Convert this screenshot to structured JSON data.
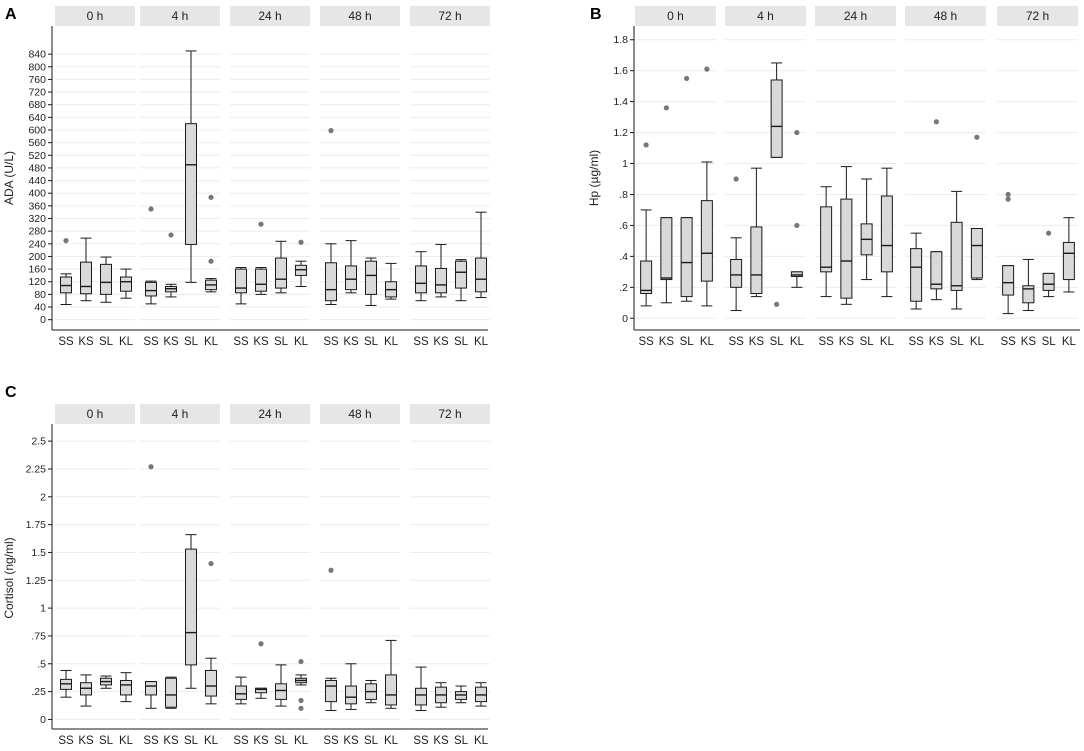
{
  "chart_data": [
    {
      "type": "boxplot",
      "panel_label": "A",
      "ylabel": "ADA (U/L)",
      "ylim": [
        -20,
        910
      ],
      "yticks": [
        0,
        40,
        80,
        120,
        160,
        200,
        240,
        280,
        320,
        360,
        400,
        440,
        480,
        520,
        560,
        600,
        640,
        680,
        720,
        760,
        800,
        840
      ],
      "ytick_labels": [
        "0",
        "40",
        "80",
        "120",
        "160",
        "200",
        "240",
        "280",
        "320",
        "360",
        "400",
        "440",
        "480",
        "520",
        "560",
        "600",
        "640",
        "680",
        "720",
        "760",
        "800",
        "840"
      ],
      "groups": [
        "SS",
        "KS",
        "SL",
        "KL"
      ],
      "facets": [
        {
          "label": "0 h",
          "boxes": [
            {
              "group": "SS",
              "min": 48,
              "q1": 85,
              "median": 108,
              "q3": 135,
              "max": 145,
              "outliers": [
                250
              ]
            },
            {
              "group": "KS",
              "min": 60,
              "q1": 82,
              "median": 105,
              "q3": 182,
              "max": 258,
              "outliers": []
            },
            {
              "group": "SL",
              "min": 55,
              "q1": 80,
              "median": 118,
              "q3": 175,
              "max": 198,
              "outliers": []
            },
            {
              "group": "KL",
              "min": 68,
              "q1": 90,
              "median": 120,
              "q3": 135,
              "max": 160,
              "outliers": []
            }
          ]
        },
        {
          "label": "4 h",
          "boxes": [
            {
              "group": "SS",
              "min": 50,
              "q1": 75,
              "median": 92,
              "q3": 118,
              "max": 122,
              "outliers": [
                350
              ]
            },
            {
              "group": "KS",
              "min": 72,
              "q1": 88,
              "median": 98,
              "q3": 105,
              "max": 112,
              "outliers": [
                268
              ]
            },
            {
              "group": "SL",
              "min": 118,
              "q1": 238,
              "median": 490,
              "q3": 620,
              "max": 850,
              "outliers": []
            },
            {
              "group": "KL",
              "min": 88,
              "q1": 95,
              "median": 110,
              "q3": 125,
              "max": 130,
              "outliers": [
                387,
                185
              ]
            }
          ]
        },
        {
          "label": "24 h",
          "boxes": [
            {
              "group": "SS",
              "min": 50,
              "q1": 85,
              "median": 100,
              "q3": 160,
              "max": 165,
              "outliers": []
            },
            {
              "group": "KS",
              "min": 80,
              "q1": 90,
              "median": 112,
              "q3": 160,
              "max": 165,
              "outliers": [
                302
              ]
            },
            {
              "group": "SL",
              "min": 85,
              "q1": 100,
              "median": 128,
              "q3": 195,
              "max": 248,
              "outliers": []
            },
            {
              "group": "KL",
              "min": 105,
              "q1": 140,
              "median": 158,
              "q3": 172,
              "max": 185,
              "outliers": [
                245
              ]
            }
          ]
        },
        {
          "label": "48 h",
          "boxes": [
            {
              "group": "SS",
              "min": 48,
              "q1": 60,
              "median": 95,
              "q3": 180,
              "max": 240,
              "outliers": [
                598
              ]
            },
            {
              "group": "KS",
              "min": 85,
              "q1": 95,
              "median": 128,
              "q3": 170,
              "max": 250,
              "outliers": []
            },
            {
              "group": "SL",
              "min": 45,
              "q1": 80,
              "median": 140,
              "q3": 185,
              "max": 195,
              "outliers": []
            },
            {
              "group": "KL",
              "min": 65,
              "q1": 72,
              "median": 95,
              "q3": 120,
              "max": 178,
              "outliers": []
            }
          ]
        },
        {
          "label": "72 h",
          "boxes": [
            {
              "group": "SS",
              "min": 60,
              "q1": 85,
              "median": 115,
              "q3": 170,
              "max": 215,
              "outliers": []
            },
            {
              "group": "KS",
              "min": 72,
              "q1": 85,
              "median": 110,
              "q3": 162,
              "max": 238,
              "outliers": []
            },
            {
              "group": "SL",
              "min": 60,
              "q1": 100,
              "median": 150,
              "q3": 185,
              "max": 190,
              "outliers": []
            },
            {
              "group": "KL",
              "min": 70,
              "q1": 88,
              "median": 128,
              "q3": 195,
              "max": 340,
              "outliers": []
            }
          ]
        }
      ]
    },
    {
      "type": "boxplot",
      "panel_label": "B",
      "ylabel": "Hp (µg/ml)",
      "ylim": [
        -0.05,
        1.85
      ],
      "yticks": [
        0,
        0.2,
        0.4,
        0.6,
        0.8,
        1.0,
        1.2,
        1.4,
        1.6,
        1.8
      ],
      "ytick_labels": [
        "0",
        ".2",
        ".4",
        ".6",
        ".8",
        "1",
        "1.2",
        "1.4",
        "1.6",
        "1.8"
      ],
      "groups": [
        "SS",
        "KS",
        "SL",
        "KL"
      ],
      "facets": [
        {
          "label": "0 h",
          "boxes": [
            {
              "group": "SS",
              "min": 0.08,
              "q1": 0.16,
              "median": 0.18,
              "q3": 0.37,
              "max": 0.7,
              "outliers": [
                1.12
              ]
            },
            {
              "group": "KS",
              "min": 0.1,
              "q1": 0.25,
              "median": 0.26,
              "q3": 0.65,
              "max": 0.65,
              "outliers": [
                1.36
              ]
            },
            {
              "group": "SL",
              "min": 0.11,
              "q1": 0.14,
              "median": 0.36,
              "q3": 0.65,
              "max": 0.65,
              "outliers": [
                1.55
              ]
            },
            {
              "group": "KL",
              "min": 0.08,
              "q1": 0.24,
              "median": 0.42,
              "q3": 0.76,
              "max": 1.01,
              "outliers": [
                1.61
              ]
            }
          ]
        },
        {
          "label": "4 h",
          "boxes": [
            {
              "group": "SS",
              "min": 0.05,
              "q1": 0.2,
              "median": 0.28,
              "q3": 0.38,
              "max": 0.52,
              "outliers": [
                0.9
              ]
            },
            {
              "group": "KS",
              "min": 0.14,
              "q1": 0.16,
              "median": 0.28,
              "q3": 0.59,
              "max": 0.97,
              "outliers": []
            },
            {
              "group": "SL",
              "min": 1.04,
              "q1": 1.04,
              "median": 1.24,
              "q3": 1.54,
              "max": 1.65,
              "outliers": [
                0.09
              ]
            },
            {
              "group": "KL",
              "min": 0.2,
              "q1": 0.27,
              "median": 0.28,
              "q3": 0.3,
              "max": 0.3,
              "outliers": [
                1.2,
                0.6
              ]
            }
          ]
        },
        {
          "label": "24 h",
          "boxes": [
            {
              "group": "SS",
              "min": 0.14,
              "q1": 0.3,
              "median": 0.33,
              "q3": 0.72,
              "max": 0.85,
              "outliers": []
            },
            {
              "group": "KS",
              "min": 0.09,
              "q1": 0.13,
              "median": 0.37,
              "q3": 0.77,
              "max": 0.98,
              "outliers": []
            },
            {
              "group": "SL",
              "min": 0.25,
              "q1": 0.41,
              "median": 0.51,
              "q3": 0.61,
              "max": 0.9,
              "outliers": []
            },
            {
              "group": "KL",
              "min": 0.14,
              "q1": 0.3,
              "median": 0.47,
              "q3": 0.79,
              "max": 0.97,
              "outliers": []
            }
          ]
        },
        {
          "label": "48 h",
          "boxes": [
            {
              "group": "SS",
              "min": 0.06,
              "q1": 0.11,
              "median": 0.33,
              "q3": 0.45,
              "max": 0.55,
              "outliers": []
            },
            {
              "group": "KS",
              "min": 0.12,
              "q1": 0.19,
              "median": 0.22,
              "q3": 0.43,
              "max": 0.43,
              "outliers": [
                1.27
              ]
            },
            {
              "group": "SL",
              "min": 0.06,
              "q1": 0.18,
              "median": 0.21,
              "q3": 0.62,
              "max": 0.82,
              "outliers": []
            },
            {
              "group": "KL",
              "min": 0.25,
              "q1": 0.26,
              "median": 0.47,
              "q3": 0.58,
              "max": 0.58,
              "outliers": [
                1.17
              ]
            }
          ]
        },
        {
          "label": "72 h",
          "boxes": [
            {
              "group": "SS",
              "min": 0.03,
              "q1": 0.15,
              "median": 0.23,
              "q3": 0.34,
              "max": 0.34,
              "outliers": [
                0.8,
                0.77
              ]
            },
            {
              "group": "KS",
              "min": 0.05,
              "q1": 0.1,
              "median": 0.19,
              "q3": 0.21,
              "max": 0.38,
              "outliers": []
            },
            {
              "group": "SL",
              "min": 0.14,
              "q1": 0.18,
              "median": 0.22,
              "q3": 0.29,
              "max": 0.29,
              "outliers": [
                0.55
              ]
            },
            {
              "group": "KL",
              "min": 0.17,
              "q1": 0.25,
              "median": 0.42,
              "q3": 0.49,
              "max": 0.65,
              "outliers": []
            }
          ]
        }
      ]
    },
    {
      "type": "boxplot",
      "panel_label": "C",
      "ylabel": "Cortisol (ng/ml)",
      "ylim": [
        -0.05,
        2.6
      ],
      "yticks": [
        0,
        0.25,
        0.5,
        0.75,
        1.0,
        1.25,
        1.5,
        1.75,
        2.0,
        2.25,
        2.5
      ],
      "ytick_labels": [
        "0",
        ".25",
        ".5",
        ".75",
        "1",
        "1.25",
        "1.5",
        "1.75",
        "2",
        "2.25",
        "2.5"
      ],
      "groups": [
        "SS",
        "KS",
        "SL",
        "KL"
      ],
      "facets": [
        {
          "label": "0 h",
          "boxes": [
            {
              "group": "SS",
              "min": 0.2,
              "q1": 0.27,
              "median": 0.32,
              "q3": 0.36,
              "max": 0.44,
              "outliers": []
            },
            {
              "group": "KS",
              "min": 0.12,
              "q1": 0.22,
              "median": 0.28,
              "q3": 0.33,
              "max": 0.4,
              "outliers": []
            },
            {
              "group": "SL",
              "min": 0.28,
              "q1": 0.31,
              "median": 0.34,
              "q3": 0.37,
              "max": 0.39,
              "outliers": []
            },
            {
              "group": "KL",
              "min": 0.16,
              "q1": 0.22,
              "median": 0.31,
              "q3": 0.35,
              "max": 0.42,
              "outliers": []
            }
          ]
        },
        {
          "label": "4 h",
          "boxes": [
            {
              "group": "SS",
              "min": 0.1,
              "q1": 0.22,
              "median": 0.3,
              "q3": 0.34,
              "max": 0.34,
              "outliers": [
                2.27
              ]
            },
            {
              "group": "KS",
              "min": 0.1,
              "q1": 0.11,
              "median": 0.22,
              "q3": 0.37,
              "max": 0.38,
              "outliers": []
            },
            {
              "group": "SL",
              "min": 0.28,
              "q1": 0.49,
              "median": 0.78,
              "q3": 1.53,
              "max": 1.66,
              "outliers": []
            },
            {
              "group": "KL",
              "min": 0.14,
              "q1": 0.21,
              "median": 0.3,
              "q3": 0.44,
              "max": 0.55,
              "outliers": [
                1.4
              ]
            }
          ]
        },
        {
          "label": "24 h",
          "boxes": [
            {
              "group": "SS",
              "min": 0.14,
              "q1": 0.18,
              "median": 0.23,
              "q3": 0.3,
              "max": 0.38,
              "outliers": []
            },
            {
              "group": "KS",
              "min": 0.19,
              "q1": 0.24,
              "median": 0.27,
              "q3": 0.28,
              "max": 0.28,
              "outliers": [
                0.68
              ]
            },
            {
              "group": "SL",
              "min": 0.12,
              "q1": 0.18,
              "median": 0.26,
              "q3": 0.32,
              "max": 0.49,
              "outliers": []
            },
            {
              "group": "KL",
              "min": 0.31,
              "q1": 0.33,
              "median": 0.35,
              "q3": 0.37,
              "max": 0.4,
              "outliers": [
                0.52,
                0.17,
                0.1
              ]
            }
          ]
        },
        {
          "label": "48 h",
          "boxes": [
            {
              "group": "SS",
              "min": 0.08,
              "q1": 0.16,
              "median": 0.3,
              "q3": 0.35,
              "max": 0.37,
              "outliers": [
                1.34
              ]
            },
            {
              "group": "KS",
              "min": 0.09,
              "q1": 0.14,
              "median": 0.2,
              "q3": 0.3,
              "max": 0.5,
              "outliers": []
            },
            {
              "group": "SL",
              "min": 0.15,
              "q1": 0.18,
              "median": 0.25,
              "q3": 0.32,
              "max": 0.35,
              "outliers": []
            },
            {
              "group": "KL",
              "min": 0.1,
              "q1": 0.13,
              "median": 0.22,
              "q3": 0.4,
              "max": 0.71,
              "outliers": []
            }
          ]
        },
        {
          "label": "72 h",
          "boxes": [
            {
              "group": "SS",
              "min": 0.08,
              "q1": 0.13,
              "median": 0.22,
              "q3": 0.28,
              "max": 0.47,
              "outliers": []
            },
            {
              "group": "KS",
              "min": 0.11,
              "q1": 0.15,
              "median": 0.22,
              "q3": 0.29,
              "max": 0.33,
              "outliers": []
            },
            {
              "group": "SL",
              "min": 0.15,
              "q1": 0.18,
              "median": 0.22,
              "q3": 0.25,
              "max": 0.3,
              "outliers": []
            },
            {
              "group": "KL",
              "min": 0.12,
              "q1": 0.16,
              "median": 0.22,
              "q3": 0.29,
              "max": 0.33,
              "outliers": []
            }
          ]
        }
      ]
    }
  ],
  "colors": {
    "box_fill": "#d9d9d9",
    "strip_fill": "#e6e6e6",
    "grid": "#ececec",
    "line": "#1a1a1a",
    "outlier": "#777777"
  }
}
